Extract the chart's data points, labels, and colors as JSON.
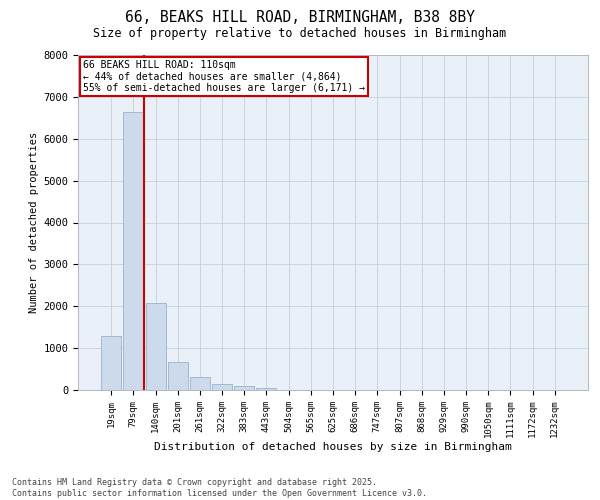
{
  "title_line1": "66, BEAKS HILL ROAD, BIRMINGHAM, B38 8BY",
  "title_line2": "Size of property relative to detached houses in Birmingham",
  "xlabel": "Distribution of detached houses by size in Birmingham",
  "ylabel": "Number of detached properties",
  "bar_color": "#ccdaeb",
  "bar_edge_color": "#8aaac8",
  "grid_color": "#c5cfe0",
  "background_color": "#eaf0f8",
  "categories": [
    "19sqm",
    "79sqm",
    "140sqm",
    "201sqm",
    "261sqm",
    "322sqm",
    "383sqm",
    "443sqm",
    "504sqm",
    "565sqm",
    "625sqm",
    "686sqm",
    "747sqm",
    "807sqm",
    "868sqm",
    "929sqm",
    "990sqm",
    "1050sqm",
    "1111sqm",
    "1172sqm",
    "1232sqm"
  ],
  "values": [
    1300,
    6650,
    2080,
    680,
    300,
    150,
    90,
    50,
    0,
    0,
    0,
    0,
    0,
    0,
    0,
    0,
    0,
    0,
    0,
    0,
    0
  ],
  "ylim": [
    0,
    8000
  ],
  "yticks": [
    0,
    1000,
    2000,
    3000,
    4000,
    5000,
    6000,
    7000,
    8000
  ],
  "property_line_label": "66 BEAKS HILL ROAD: 110sqm",
  "annotation_line1": "← 44% of detached houses are smaller (4,864)",
  "annotation_line2": "55% of semi-detached houses are larger (6,171) →",
  "annotation_box_color": "#ffffff",
  "annotation_box_edge": "#cc0000",
  "red_line_color": "#cc0000",
  "red_line_x": 1.5,
  "footer_line1": "Contains HM Land Registry data © Crown copyright and database right 2025.",
  "footer_line2": "Contains public sector information licensed under the Open Government Licence v3.0."
}
